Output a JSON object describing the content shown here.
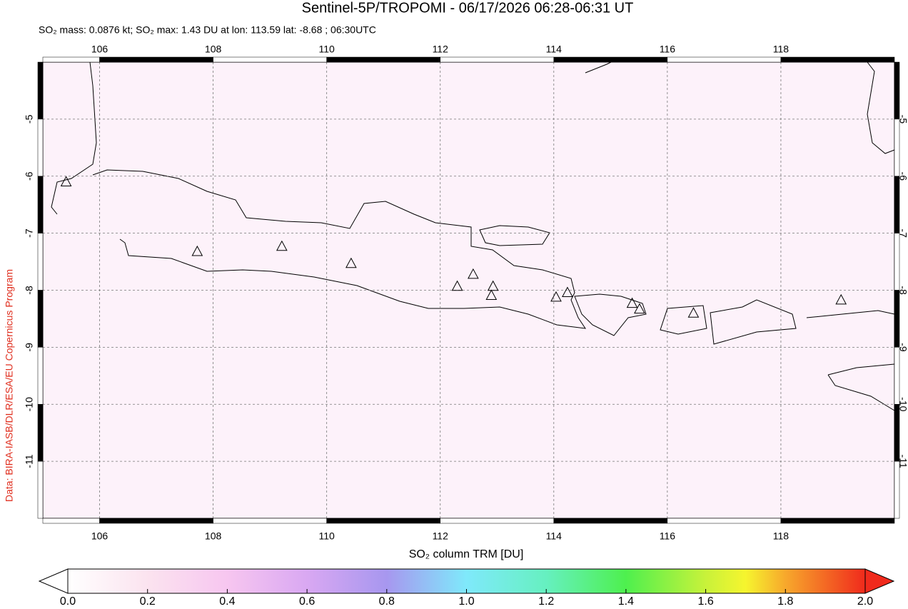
{
  "chart_data": {
    "type": "map",
    "title": "Sentinel-5P/TROPOMI - 06/17/2026 06:28-06:31 UT",
    "subtitle": "SO₂ mass: 0.0876 kt; SO₂ max: 1.43 DU at lon: 113.59 lat: -8.68 ; 06:30UTC",
    "credit": "Data: BIRA-IASB/DLR/ESA/EU Copernicus Program",
    "xlim": [
      105,
      120
    ],
    "ylim": [
      -12,
      -4
    ],
    "xticks": [
      106,
      108,
      110,
      112,
      114,
      116,
      118
    ],
    "yticks": [
      -5,
      -6,
      -7,
      -8,
      -9,
      -10,
      -11
    ],
    "grid": true,
    "volcanoes": {
      "lon": [
        105.41,
        107.72,
        109.21,
        110.43,
        112.3,
        112.58,
        112.93,
        112.9,
        114.04,
        114.24,
        115.38,
        115.51,
        116.46,
        119.06
      ],
      "lat": [
        -6.11,
        -7.33,
        -7.24,
        -7.54,
        -7.94,
        -7.73,
        -7.94,
        -8.1,
        -8.13,
        -8.05,
        -8.24,
        -8.34,
        -8.41,
        -8.18
      ]
    },
    "colorbar": {
      "label": "SO₂ column TRM [DU]",
      "lim": [
        0,
        2
      ],
      "ticks": [
        {
          "value": 0,
          "label": "0.0"
        },
        {
          "value": 0.2,
          "label": "0.2"
        },
        {
          "value": 0.4,
          "label": "0.4"
        },
        {
          "value": 0.6,
          "label": "0.6"
        },
        {
          "value": 0.8,
          "label": "0.8"
        },
        {
          "value": 1,
          "label": "1.0"
        },
        {
          "value": 1.2,
          "label": "1.2"
        },
        {
          "value": 1.4,
          "label": "1.4"
        },
        {
          "value": 1.6,
          "label": "1.6"
        },
        {
          "value": 1.8,
          "label": "1.8"
        },
        {
          "value": 2,
          "label": "2.0"
        }
      ]
    }
  }
}
